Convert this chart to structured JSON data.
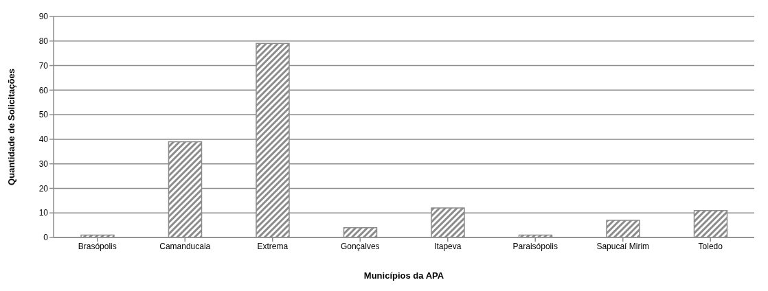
{
  "chart_data": {
    "type": "bar",
    "xlabel": "Municípios da APA",
    "ylabel": "Quantidade  de Solicitações",
    "categories": [
      "Brasópolis",
      "Camanducaia",
      "Extrema",
      "Gonçalves",
      "Itapeva",
      "Paraisópolis",
      "Sapucaí Mirim",
      "Toledo"
    ],
    "values": [
      1,
      39,
      79,
      4,
      12,
      1,
      7,
      11
    ],
    "color": "#8c8c8c",
    "ylim": [
      0,
      90
    ],
    "yticks": [
      0,
      10,
      20,
      30,
      40,
      50,
      60,
      70,
      80,
      90
    ],
    "grid": "y",
    "legend": false
  }
}
